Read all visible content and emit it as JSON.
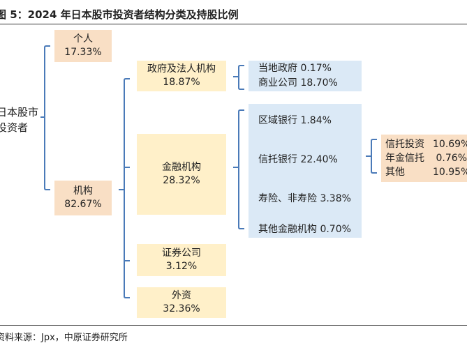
{
  "header": {
    "title": "图 5：2024 年日本股市投资者结构分类及持股比例"
  },
  "root": {
    "line1": "日本股市",
    "line2": "投资者"
  },
  "level1": {
    "individual": {
      "label": "个人",
      "value": "17.33%"
    },
    "institution": {
      "label": "机构",
      "value": "82.67%"
    }
  },
  "level2": {
    "gov_corp": {
      "label": "政府及法人机构",
      "value": "18.87%"
    },
    "financial": {
      "label": "金融机构",
      "value": "28.32%"
    },
    "securities": {
      "label": "证券公司",
      "value": "3.12%"
    },
    "foreign": {
      "label": "外资",
      "value": "32.36%"
    }
  },
  "gov_corp_detail": [
    {
      "label": "当地政府  0.17%"
    },
    {
      "label": "商业公司 18.70%"
    }
  ],
  "financial_detail": [
    {
      "label": "区域银行  1.84%"
    },
    {
      "label": "信托银行 22.40%"
    },
    {
      "label": "寿险、非寿险 3.38%"
    },
    {
      "label": "其他金融机构 0.70%"
    }
  ],
  "trust_detail": [
    {
      "name": "信托投资",
      "value": "10.69%"
    },
    {
      "name": "年金信托",
      "value": "0.76%"
    },
    {
      "name": "其他",
      "value": "10.95%"
    }
  ],
  "footer": {
    "source": "资料来源：Jpx，中原证券研究所"
  },
  "colors": {
    "peach": "#f9dfc5",
    "yellow": "#fff0c9",
    "blue": "#dbe9f6",
    "bracket": "#4a7ab8"
  }
}
